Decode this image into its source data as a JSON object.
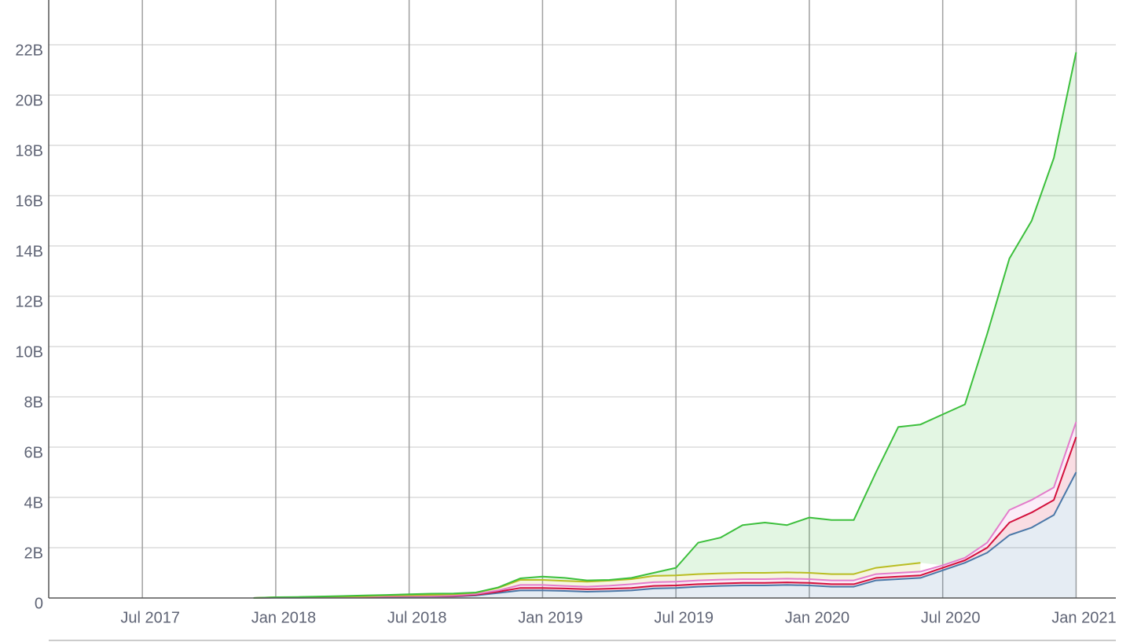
{
  "chart_data": {
    "type": "stacked_area",
    "x": [
      "2017-12",
      "2018-01",
      "2018-02",
      "2018-03",
      "2018-04",
      "2018-05",
      "2018-06",
      "2018-07",
      "2018-08",
      "2018-09",
      "2018-10",
      "2018-11",
      "2018-12",
      "2019-01",
      "2019-02",
      "2019-03",
      "2019-04",
      "2019-05",
      "2019-06",
      "2019-07",
      "2019-08",
      "2019-09",
      "2019-10",
      "2019-11",
      "2019-12",
      "2020-01",
      "2020-02",
      "2020-03",
      "2020-04",
      "2020-05",
      "2020-06",
      "2020-07",
      "2020-08",
      "2020-09",
      "2020-10",
      "2020-11",
      "2020-12",
      "2021-01"
    ],
    "series": [
      {
        "color": "#4a78a8",
        "values": [
          0,
          0.01,
          0.01,
          0.02,
          0.02,
          0.03,
          0.04,
          0.05,
          0.05,
          0.06,
          0.1,
          0.2,
          0.3,
          0.3,
          0.28,
          0.25,
          0.27,
          0.3,
          0.38,
          0.4,
          0.45,
          0.48,
          0.5,
          0.5,
          0.52,
          0.5,
          0.45,
          0.45,
          0.7,
          0.75,
          0.8,
          1.1,
          1.4,
          1.8,
          2.5,
          2.8,
          3.3,
          5.0
        ]
      },
      {
        "color": "#d3103c",
        "values": [
          0,
          0.01,
          0.01,
          0.01,
          0.01,
          0.01,
          0.02,
          0.02,
          0.02,
          0.02,
          0.03,
          0.05,
          0.1,
          0.1,
          0.1,
          0.1,
          0.1,
          0.1,
          0.1,
          0.1,
          0.1,
          0.1,
          0.1,
          0.1,
          0.1,
          0.1,
          0.1,
          0.1,
          0.1,
          0.1,
          0.1,
          0.1,
          0.1,
          0.2,
          0.5,
          0.6,
          0.6,
          1.4
        ]
      },
      {
        "color": "#e37ccb",
        "values": [
          0,
          0,
          0,
          0,
          0.01,
          0.01,
          0.01,
          0.01,
          0.01,
          0.02,
          0.03,
          0.05,
          0.12,
          0.12,
          0.1,
          0.1,
          0.12,
          0.15,
          0.15,
          0.15,
          0.15,
          0.15,
          0.15,
          0.15,
          0.15,
          0.15,
          0.15,
          0.15,
          0.15,
          0.15,
          0.15,
          0.1,
          0.1,
          0.2,
          0.5,
          0.5,
          0.5,
          0.6
        ]
      },
      {
        "color": "#b9bd22",
        "values": [
          0,
          0.01,
          0.01,
          0.02,
          0.02,
          0.02,
          0.03,
          0.03,
          0.04,
          0.05,
          0.05,
          0.1,
          0.2,
          0.2,
          0.2,
          0.2,
          0.2,
          0.2,
          0.25,
          0.25,
          0.25,
          0.25,
          0.25,
          0.25,
          0.25,
          0.25,
          0.25,
          0.25,
          0.25,
          0.3,
          0.35,
          null,
          null,
          null,
          null,
          null,
          null,
          null
        ]
      },
      {
        "color": "#3cbf3c",
        "values": [
          0,
          0,
          0.01,
          0.01,
          0.02,
          0.03,
          0.02,
          0.04,
          0.05,
          0.03,
          0.01,
          0.02,
          0.06,
          0.13,
          0.12,
          0.05,
          0.03,
          0.05,
          0.12,
          0.3,
          1.25,
          1.42,
          1.9,
          2.0,
          1.88,
          2.2,
          2.15,
          2.15,
          3.8,
          5.5,
          5.5,
          6.0,
          6.1,
          8.3,
          10.0,
          11.1,
          13.1,
          14.7
        ]
      }
    ],
    "xlim": [
      "2017-03",
      "2021-03"
    ],
    "xticks": [
      {
        "value": "2017-07",
        "label": "Jul 2017"
      },
      {
        "value": "2018-01",
        "label": "Jan 2018"
      },
      {
        "value": "2018-07",
        "label": "Jul 2018"
      },
      {
        "value": "2019-01",
        "label": "Jan 2019"
      },
      {
        "value": "2019-07",
        "label": "Jul 2019"
      },
      {
        "value": "2020-01",
        "label": "Jan 2020"
      },
      {
        "value": "2020-07",
        "label": "Jul 2020"
      },
      {
        "value": "2021-01",
        "label": "Jan 2021"
      }
    ],
    "ylim": [
      0,
      24
    ],
    "yticks": [
      0,
      {
        "value": 2,
        "label": "2B"
      },
      {
        "value": 4,
        "label": "4B"
      },
      {
        "value": 6,
        "label": "6B"
      },
      {
        "value": 8,
        "label": "8B"
      },
      {
        "value": 10,
        "label": "10B"
      },
      {
        "value": 12,
        "label": "12B"
      },
      {
        "value": 14,
        "label": "14B"
      },
      {
        "value": 16,
        "label": "16B"
      },
      {
        "value": 18,
        "label": "18B"
      },
      {
        "value": 20,
        "label": "20B"
      },
      {
        "value": 22,
        "label": "22B"
      }
    ],
    "grid": true
  }
}
